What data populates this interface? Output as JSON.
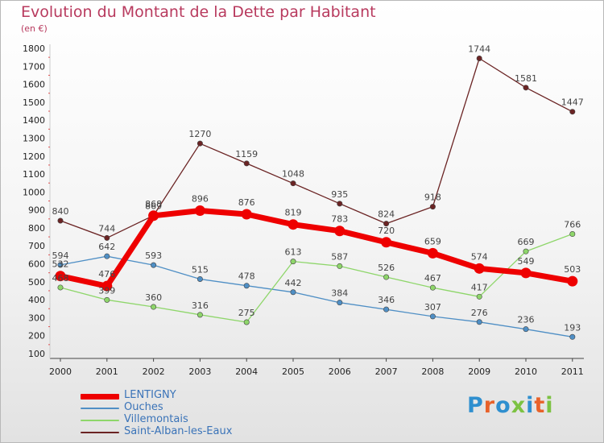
{
  "title": "Evolution du Montant de la Dette par Habitant",
  "unit": "(en €)",
  "brand": {
    "name": "Proxiti",
    "letter_colors": [
      "#2f8fcf",
      "#e8622a",
      "#2f8fcf",
      "#7cc242",
      "#2f8fcf",
      "#e8622a",
      "#7cc242"
    ]
  },
  "chart_data": {
    "type": "line",
    "title": "Evolution du Montant de la Dette par Habitant",
    "ylabel": "(en €)",
    "xlabel": "",
    "x": [
      "2000",
      "2001",
      "2002",
      "2003",
      "2004",
      "2005",
      "2006",
      "2007",
      "2008",
      "2009",
      "2010",
      "2011"
    ],
    "y_ticks": [
      100,
      200,
      300,
      400,
      500,
      600,
      700,
      800,
      900,
      1000,
      1100,
      1200,
      1300,
      1400,
      1500,
      1600,
      1700,
      1800
    ],
    "ylim": [
      100,
      1800
    ],
    "grid": false,
    "legend_position": "bottom-left",
    "series": [
      {
        "name": "Saint-Alban-les-Eaux",
        "color": "#6b2424",
        "values": [
          840,
          744,
          869,
          1270,
          1159,
          1048,
          935,
          824,
          918,
          1744,
          1581,
          1447
        ]
      },
      {
        "name": "Ouches",
        "color": "#4f8fc5",
        "values": [
          594,
          642,
          593,
          515,
          478,
          442,
          384,
          346,
          307,
          276,
          236,
          193
        ]
      },
      {
        "name": "Villemontais",
        "color": "#8ed66a",
        "values": [
          468,
          399,
          360,
          316,
          275,
          613,
          587,
          526,
          467,
          417,
          669,
          766
        ]
      },
      {
        "name": "LENTIGNY",
        "color": "#ee0000",
        "values": [
          532,
          476,
          868,
          896,
          876,
          819,
          783,
          720,
          659,
          574,
          549,
          503
        ]
      }
    ]
  }
}
